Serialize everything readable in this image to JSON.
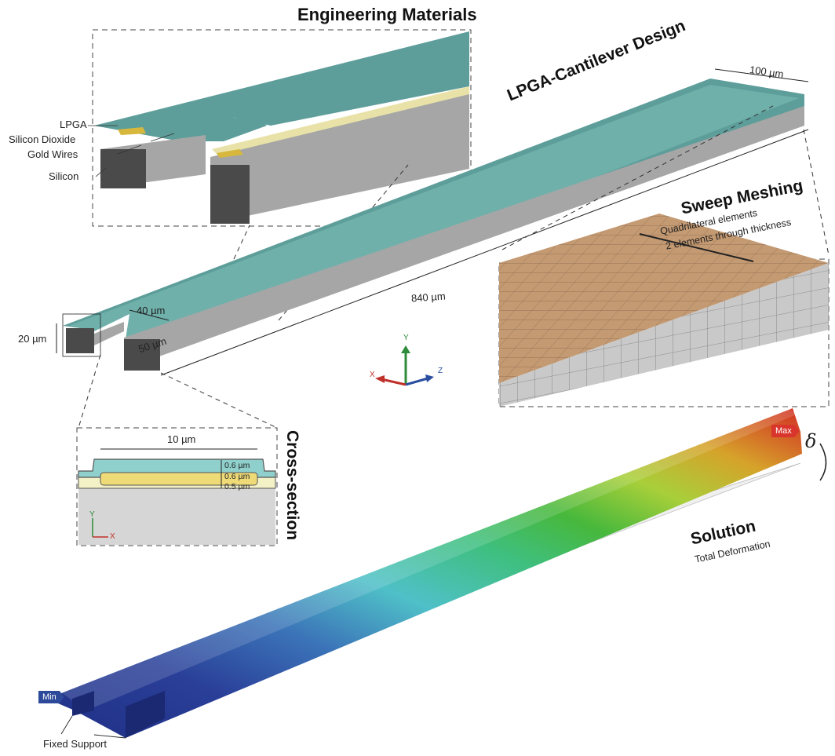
{
  "headings": {
    "engineering_materials": "Engineering Materials",
    "cantilever_design": "LPGA-Cantilever Design",
    "sweep_meshing": "Sweep Meshing",
    "cross_section": "Cross-section",
    "solution": "Solution"
  },
  "subtitles": {
    "sweep_line1": "Quadrilateral elements",
    "sweep_line2": "2 elements through thickness",
    "solution": "Total Deformation"
  },
  "materials": [
    "LPGA",
    "Silicon Dioxide",
    "Gold Wires",
    "Silicon"
  ],
  "dimensions": {
    "width": "100 µm",
    "length": "840 µm",
    "height": "20 µm",
    "gap": "40 µm",
    "leg": "50 µm",
    "xsec_width": "10 µm",
    "xsec_t1": "0.6 µm",
    "xsec_t2": "0.6 µm",
    "xsec_t3": "0.5 µm"
  },
  "axes": {
    "x": "X",
    "y": "Y",
    "z": "Z"
  },
  "solution_labels": {
    "min": "Min",
    "max": "Max",
    "deflection": "δ",
    "support": "Fixed Support"
  },
  "colors": {
    "lpga": "#5e9e9a",
    "lpga_light": "#7fc1bc",
    "silicon": "#a8a8a8",
    "silicon_dark": "#4a4a4a",
    "gold": "#d7b83c",
    "oxide": "#f3f1c6",
    "mesh_top": "#c49a72",
    "x_axis": "#c0302a",
    "y_axis": "#2e8b3a",
    "z_axis": "#2b4fa0"
  }
}
